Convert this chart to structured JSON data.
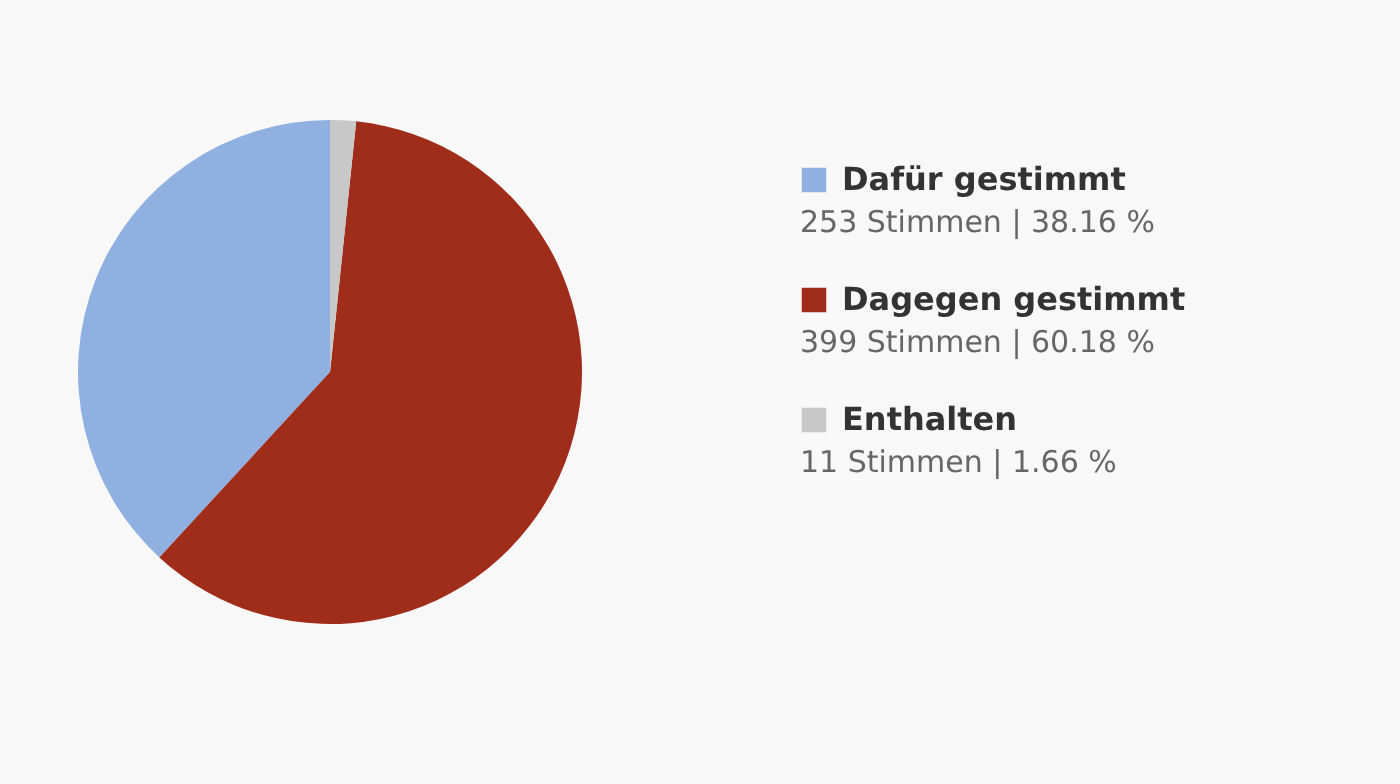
{
  "chart_data": {
    "type": "pie",
    "categories": [
      "Dafür gestimmt",
      "Dagegen gestimmt",
      "Enthalten"
    ],
    "values": [
      253,
      399,
      11
    ],
    "colors": [
      "#8fb0e0",
      "#a02c1a",
      "#c8c8c8"
    ],
    "value_labels": [
      "253 Stimmen | 38.16 %",
      "399 Stimmen | 60.18 %",
      "11 Stimmen | 1.66 %"
    ],
    "legend": "right"
  }
}
